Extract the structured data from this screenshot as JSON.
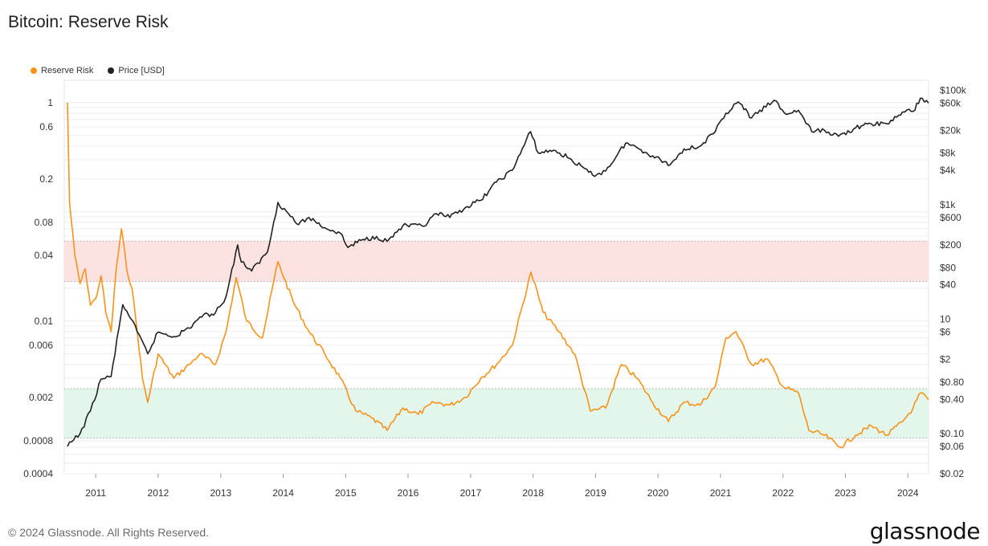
{
  "title": "Bitcoin: Reserve Risk",
  "legend": [
    {
      "label": "Reserve Risk",
      "color": "#f7931a"
    },
    {
      "label": "Price [USD]",
      "color": "#222222"
    }
  ],
  "footer": "© 2024 Glassnode. All Rights Reserved.",
  "brand": "glassnode",
  "chart_data": {
    "type": "line",
    "title": "Bitcoin: Reserve Risk",
    "x_axis": {
      "ticks": [
        "2011",
        "2012",
        "2013",
        "2014",
        "2015",
        "2016",
        "2017",
        "2018",
        "2019",
        "2020",
        "2021",
        "2022",
        "2023",
        "2024"
      ],
      "range": [
        "2010-07",
        "2024-05"
      ]
    },
    "y_left": {
      "scale": "log",
      "range": [
        0.0004,
        1.6
      ],
      "ticks": [
        {
          "value": 1,
          "label": "1"
        },
        {
          "value": 0.6,
          "label": "0.6"
        },
        {
          "value": 0.2,
          "label": "0.2"
        },
        {
          "value": 0.08,
          "label": "0.08"
        },
        {
          "value": 0.04,
          "label": "0.04"
        },
        {
          "value": 0.01,
          "label": "0.01"
        },
        {
          "value": 0.006,
          "label": "0.006"
        },
        {
          "value": 0.002,
          "label": "0.002"
        },
        {
          "value": 0.0008,
          "label": "0.0008"
        },
        {
          "value": 0.0004,
          "label": "0.0004"
        }
      ]
    },
    "y_right": {
      "scale": "log",
      "range": [
        0.02,
        150000
      ],
      "ticks": [
        {
          "value": 100000,
          "label": "$100k"
        },
        {
          "value": 60000,
          "label": "$60k"
        },
        {
          "value": 20000,
          "label": "$20k"
        },
        {
          "value": 8000,
          "label": "$8k"
        },
        {
          "value": 4000,
          "label": "$4k"
        },
        {
          "value": 1000,
          "label": "$1k"
        },
        {
          "value": 600,
          "label": "$600"
        },
        {
          "value": 200,
          "label": "$200"
        },
        {
          "value": 80,
          "label": "$80"
        },
        {
          "value": 40,
          "label": "$40"
        },
        {
          "value": 10,
          "label": "10"
        },
        {
          "value": 6,
          "label": "$6"
        },
        {
          "value": 2,
          "label": "$2"
        },
        {
          "value": 0.8,
          "label": "$0.80"
        },
        {
          "value": 0.4,
          "label": "$0.40"
        },
        {
          "value": 0.1,
          "label": "$0.10"
        },
        {
          "value": 0.06,
          "label": "$0.06"
        },
        {
          "value": 0.02,
          "label": "$0.02"
        }
      ]
    },
    "bands": [
      {
        "name": "high-risk-zone",
        "from": 0.023,
        "to": 0.054,
        "color": "#fde2e2"
      },
      {
        "name": "low-risk-zone",
        "from": 0.00085,
        "to": 0.0024,
        "color": "#e3f6ec"
      }
    ],
    "series": [
      {
        "name": "Reserve Risk",
        "axis": "left",
        "color": "#f7931a",
        "points": [
          [
            "2010-07-20",
            1.0
          ],
          [
            "2010-08-01",
            0.12
          ],
          [
            "2010-09-01",
            0.04
          ],
          [
            "2010-10-01",
            0.022
          ],
          [
            "2010-11-01",
            0.03
          ],
          [
            "2010-12-01",
            0.014
          ],
          [
            "2011-01-01",
            0.016
          ],
          [
            "2011-02-01",
            0.026
          ],
          [
            "2011-03-01",
            0.012
          ],
          [
            "2011-04-01",
            0.008
          ],
          [
            "2011-05-01",
            0.03
          ],
          [
            "2011-06-01",
            0.07
          ],
          [
            "2011-07-01",
            0.03
          ],
          [
            "2011-08-01",
            0.02
          ],
          [
            "2011-09-01",
            0.008
          ],
          [
            "2011-10-01",
            0.003
          ],
          [
            "2011-11-01",
            0.0018
          ],
          [
            "2012-01-01",
            0.005
          ],
          [
            "2012-04-01",
            0.003
          ],
          [
            "2012-07-01",
            0.004
          ],
          [
            "2012-09-01",
            0.005
          ],
          [
            "2012-12-01",
            0.004
          ],
          [
            "2013-02-01",
            0.008
          ],
          [
            "2013-04-01",
            0.025
          ],
          [
            "2013-06-01",
            0.01
          ],
          [
            "2013-09-01",
            0.007
          ],
          [
            "2013-12-01",
            0.035
          ],
          [
            "2014-03-01",
            0.015
          ],
          [
            "2014-06-01",
            0.008
          ],
          [
            "2014-09-01",
            0.005
          ],
          [
            "2014-12-01",
            0.003
          ],
          [
            "2015-03-01",
            0.0015
          ],
          [
            "2015-06-01",
            0.0013
          ],
          [
            "2015-09-01",
            0.001
          ],
          [
            "2015-12-01",
            0.0016
          ],
          [
            "2016-03-01",
            0.0014
          ],
          [
            "2016-06-01",
            0.0018
          ],
          [
            "2016-09-01",
            0.0017
          ],
          [
            "2016-12-01",
            0.002
          ],
          [
            "2017-03-01",
            0.003
          ],
          [
            "2017-06-01",
            0.004
          ],
          [
            "2017-09-01",
            0.006
          ],
          [
            "2017-12-20",
            0.028
          ],
          [
            "2018-03-01",
            0.012
          ],
          [
            "2018-06-01",
            0.008
          ],
          [
            "2018-09-01",
            0.005
          ],
          [
            "2018-12-01",
            0.0015
          ],
          [
            "2019-03-01",
            0.0016
          ],
          [
            "2019-06-01",
            0.004
          ],
          [
            "2019-09-01",
            0.003
          ],
          [
            "2019-12-01",
            0.0018
          ],
          [
            "2020-03-01",
            0.0012
          ],
          [
            "2020-06-01",
            0.0018
          ],
          [
            "2020-09-01",
            0.0017
          ],
          [
            "2020-12-01",
            0.0025
          ],
          [
            "2021-02-01",
            0.007
          ],
          [
            "2021-04-01",
            0.008
          ],
          [
            "2021-07-01",
            0.004
          ],
          [
            "2021-10-01",
            0.0045
          ],
          [
            "2022-01-01",
            0.0025
          ],
          [
            "2022-04-01",
            0.0022
          ],
          [
            "2022-06-01",
            0.001
          ],
          [
            "2022-09-01",
            0.0009
          ],
          [
            "2022-12-01",
            0.0007
          ],
          [
            "2023-03-01",
            0.0009
          ],
          [
            "2023-06-01",
            0.0011
          ],
          [
            "2023-09-01",
            0.0009
          ],
          [
            "2023-12-01",
            0.0012
          ],
          [
            "2024-02-01",
            0.0016
          ],
          [
            "2024-03-15",
            0.0022
          ],
          [
            "2024-05-01",
            0.0019
          ]
        ]
      },
      {
        "name": "Price [USD]",
        "axis": "right",
        "color": "#222222",
        "points": [
          [
            "2010-07-20",
            0.06
          ],
          [
            "2010-10-01",
            0.1
          ],
          [
            "2010-12-01",
            0.25
          ],
          [
            "2011-02-01",
            0.9
          ],
          [
            "2011-04-01",
            1.0
          ],
          [
            "2011-06-08",
            18
          ],
          [
            "2011-07-01",
            14
          ],
          [
            "2011-09-01",
            6
          ],
          [
            "2011-11-01",
            2.5
          ],
          [
            "2012-01-01",
            6
          ],
          [
            "2012-04-01",
            5
          ],
          [
            "2012-07-01",
            7
          ],
          [
            "2012-09-01",
            11
          ],
          [
            "2012-12-01",
            13
          ],
          [
            "2013-02-01",
            25
          ],
          [
            "2013-04-10",
            200
          ],
          [
            "2013-05-01",
            100
          ],
          [
            "2013-07-01",
            70
          ],
          [
            "2013-10-01",
            150
          ],
          [
            "2013-12-01",
            1100
          ],
          [
            "2014-02-01",
            700
          ],
          [
            "2014-04-01",
            450
          ],
          [
            "2014-06-01",
            600
          ],
          [
            "2014-09-01",
            400
          ],
          [
            "2014-12-01",
            320
          ],
          [
            "2015-01-14",
            180
          ],
          [
            "2015-04-01",
            240
          ],
          [
            "2015-07-01",
            280
          ],
          [
            "2015-09-01",
            230
          ],
          [
            "2015-12-01",
            430
          ],
          [
            "2016-04-01",
            420
          ],
          [
            "2016-06-15",
            700
          ],
          [
            "2016-09-01",
            600
          ],
          [
            "2016-12-01",
            900
          ],
          [
            "2017-03-01",
            1200
          ],
          [
            "2017-06-01",
            2500
          ],
          [
            "2017-09-01",
            4000
          ],
          [
            "2017-12-17",
            19000
          ],
          [
            "2018-02-01",
            8000
          ],
          [
            "2018-05-01",
            9000
          ],
          [
            "2018-08-01",
            6500
          ],
          [
            "2018-12-15",
            3300
          ],
          [
            "2019-03-01",
            3900
          ],
          [
            "2019-06-26",
            12000
          ],
          [
            "2019-09-01",
            10000
          ],
          [
            "2019-12-01",
            7200
          ],
          [
            "2020-03-12",
            5000
          ],
          [
            "2020-06-01",
            9500
          ],
          [
            "2020-09-01",
            10500
          ],
          [
            "2020-12-01",
            19000
          ],
          [
            "2021-02-01",
            40000
          ],
          [
            "2021-04-14",
            63000
          ],
          [
            "2021-07-01",
            33000
          ],
          [
            "2021-11-10",
            67000
          ],
          [
            "2022-01-20",
            38000
          ],
          [
            "2022-04-01",
            45000
          ],
          [
            "2022-06-18",
            19000
          ],
          [
            "2022-09-01",
            20000
          ],
          [
            "2022-11-21",
            15800
          ],
          [
            "2023-03-01",
            22000
          ],
          [
            "2023-06-01",
            26000
          ],
          [
            "2023-09-01",
            26000
          ],
          [
            "2023-12-01",
            42000
          ],
          [
            "2024-02-01",
            43000
          ],
          [
            "2024-03-14",
            73000
          ],
          [
            "2024-05-01",
            60000
          ]
        ]
      }
    ]
  }
}
